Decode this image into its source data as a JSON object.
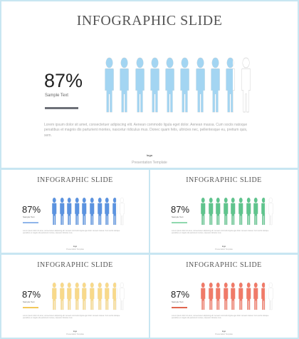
{
  "slides": [
    {
      "title": "INFOGRAPHIC SLIDE",
      "percent_label": "87%",
      "sample_text": "Sample Text",
      "accent_color": "#a3d5f2",
      "bar_color": "#6d7078",
      "total_people": 10,
      "filled_fraction": 0.87,
      "body": "Lorem ipsum dolor sit amet, consectetuer adipiscing elit. Aenean commodo ligula eget dolor. Aenean massa. Cum sociis natoque penatibus et magnis dis parturient montes, nascetur ridiculus mus. Donec quam felis, ultricies nec, pellentesque eu, pretium quis, sem.",
      "footer_logo": "logo",
      "footer_text": "Presentation Template"
    },
    {
      "title": "INFOGRAPHIC SLIDE",
      "percent_label": "87%",
      "sample_text": "Sample Text",
      "accent_color": "#5b93e0",
      "bar_color": "#8fb5ea",
      "total_people": 10,
      "filled_fraction": 0.87,
      "body": "Lorem ipsum dolor sit amet, consectetuer adipiscing elit. Aenean commodo ligula eget dolor. Aenean massa. Cum sociis natoque penatibus et magnis dis parturient montes, nascetur ridiculus mus.",
      "footer_logo": "logo",
      "footer_text": "Presentation Template"
    },
    {
      "title": "INFOGRAPHIC SLIDE",
      "percent_label": "87%",
      "sample_text": "Sample Text",
      "accent_color": "#5fc48d",
      "bar_color": "#8fd8ae",
      "total_people": 10,
      "filled_fraction": 0.87,
      "body": "Lorem ipsum dolor sit amet, consectetuer adipiscing elit. Aenean commodo ligula eget dolor. Aenean massa. Cum sociis natoque penatibus et magnis dis parturient montes, nascetur ridiculus mus.",
      "footer_logo": "logo",
      "footer_text": "Presentation Template"
    },
    {
      "title": "INFOGRAPHIC SLIDE",
      "percent_label": "87%",
      "sample_text": "Sample Text",
      "accent_color": "#f8d98a",
      "bar_color": "#f3c85a",
      "total_people": 10,
      "filled_fraction": 0.87,
      "body": "Lorem ipsum dolor sit amet, consectetuer adipiscing elit. Aenean commodo ligula eget dolor. Aenean massa. Cum sociis natoque penatibus et magnis dis parturient montes, nascetur ridiculus mus.",
      "footer_logo": "logo",
      "footer_text": "Presentation Template"
    },
    {
      "title": "INFOGRAPHIC SLIDE",
      "percent_label": "87%",
      "sample_text": "Sample Text",
      "accent_color": "#f07a68",
      "bar_color": "#e0664f",
      "total_people": 10,
      "filled_fraction": 0.87,
      "body": "Lorem ipsum dolor sit amet, consectetuer adipiscing elit. Aenean commodo ligula eget dolor. Aenean massa. Cum sociis natoque penatibus et magnis dis parturient montes, nascetur ridiculus mus.",
      "footer_logo": "logo",
      "footer_text": "Presentation Template"
    }
  ]
}
